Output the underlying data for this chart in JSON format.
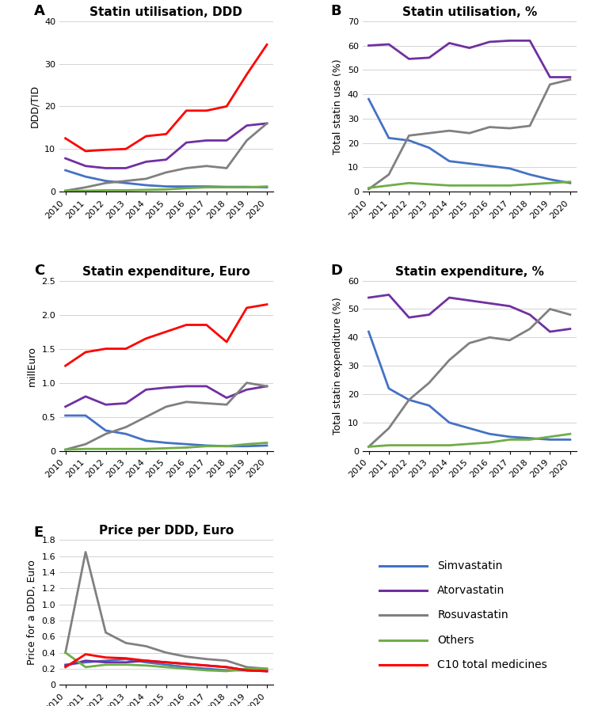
{
  "years": [
    2010,
    2011,
    2012,
    2013,
    2014,
    2015,
    2016,
    2017,
    2018,
    2019,
    2020
  ],
  "A": {
    "title": "Statin utilisation, DDD",
    "ylabel": "DDD/TID",
    "ylim": [
      0,
      40
    ],
    "yticks": [
      0,
      10,
      20,
      30,
      40
    ],
    "simvastatin": [
      5.0,
      3.5,
      2.5,
      2.0,
      1.5,
      1.2,
      1.2,
      1.2,
      1.1,
      1.1,
      1.0
    ],
    "atorvastatin": [
      7.8,
      6.0,
      5.5,
      5.5,
      7.0,
      7.5,
      11.5,
      12.0,
      12.0,
      15.5,
      16.0
    ],
    "rosuvastatin": [
      0.2,
      1.0,
      2.0,
      2.5,
      3.0,
      4.5,
      5.5,
      6.0,
      5.5,
      12.0,
      16.0
    ],
    "others": [
      0.2,
      0.2,
      0.3,
      0.3,
      0.4,
      0.5,
      0.8,
      1.0,
      1.0,
      1.0,
      1.2
    ],
    "c10total": [
      12.5,
      9.5,
      9.8,
      10.0,
      13.0,
      13.5,
      19.0,
      19.0,
      20.0,
      27.5,
      34.5
    ]
  },
  "B": {
    "title": "Statin utilisation, %",
    "ylabel": "Total statin use (%)",
    "ylim": [
      0,
      70
    ],
    "yticks": [
      0,
      10,
      20,
      30,
      40,
      50,
      60,
      70
    ],
    "simvastatin": [
      38.0,
      22.0,
      21.0,
      18.0,
      12.5,
      11.5,
      10.5,
      9.5,
      7.0,
      5.0,
      3.5
    ],
    "atorvastatin": [
      60.0,
      60.5,
      54.5,
      55.0,
      61.0,
      59.0,
      61.5,
      62.0,
      62.0,
      47.0,
      47.0
    ],
    "rosuvastatin": [
      1.0,
      7.0,
      23.0,
      24.0,
      25.0,
      24.0,
      26.5,
      26.0,
      27.0,
      44.0,
      46.0
    ],
    "others": [
      1.5,
      2.5,
      3.5,
      3.0,
      2.5,
      2.5,
      2.5,
      2.5,
      3.0,
      3.5,
      4.0
    ],
    "c10total": null
  },
  "C": {
    "title": "Statin expenditure, Euro",
    "ylabel": "millEuro",
    "ylim": [
      0,
      2.5
    ],
    "yticks": [
      0,
      0.5,
      1.0,
      1.5,
      2.0,
      2.5
    ],
    "simvastatin": [
      0.52,
      0.52,
      0.3,
      0.25,
      0.15,
      0.12,
      0.1,
      0.08,
      0.07,
      0.07,
      0.08
    ],
    "atorvastatin": [
      0.65,
      0.8,
      0.68,
      0.7,
      0.9,
      0.93,
      0.95,
      0.95,
      0.78,
      0.9,
      0.95
    ],
    "rosuvastatin": [
      0.02,
      0.1,
      0.25,
      0.35,
      0.5,
      0.65,
      0.72,
      0.7,
      0.68,
      1.0,
      0.95
    ],
    "others": [
      0.02,
      0.03,
      0.03,
      0.03,
      0.03,
      0.04,
      0.05,
      0.07,
      0.07,
      0.1,
      0.12
    ],
    "c10total": [
      1.25,
      1.45,
      1.5,
      1.5,
      1.65,
      1.75,
      1.85,
      1.85,
      1.6,
      2.1,
      2.15
    ]
  },
  "D": {
    "title": "Statin expenditure, %",
    "ylabel": "Total statin expenditure (%)",
    "ylim": [
      0,
      60
    ],
    "yticks": [
      0,
      10,
      20,
      30,
      40,
      50,
      60
    ],
    "simvastatin": [
      42.0,
      22.0,
      18.0,
      16.0,
      10.0,
      8.0,
      6.0,
      5.0,
      4.5,
      4.0,
      4.0
    ],
    "atorvastatin": [
      54.0,
      55.0,
      47.0,
      48.0,
      54.0,
      53.0,
      52.0,
      51.0,
      48.0,
      42.0,
      43.0
    ],
    "rosuvastatin": [
      1.5,
      8.0,
      18.0,
      24.0,
      32.0,
      38.0,
      40.0,
      39.0,
      43.0,
      50.0,
      48.0
    ],
    "others": [
      1.5,
      2.0,
      2.0,
      2.0,
      2.0,
      2.5,
      3.0,
      4.0,
      4.0,
      5.0,
      6.0
    ],
    "c10total": null
  },
  "E": {
    "title": "Price per DDD, Euro",
    "ylabel": "Price for a DDD, Euro",
    "ylim": [
      0,
      1.8
    ],
    "yticks": [
      0,
      0.2,
      0.4,
      0.6,
      0.8,
      1.0,
      1.2,
      1.4,
      1.6,
      1.8
    ],
    "simvastatin": [
      0.25,
      0.28,
      0.3,
      0.32,
      0.28,
      0.25,
      0.22,
      0.2,
      0.18,
      0.18,
      0.17
    ],
    "atorvastatin": [
      0.24,
      0.3,
      0.28,
      0.28,
      0.3,
      0.28,
      0.26,
      0.24,
      0.22,
      0.18,
      0.17
    ],
    "rosuvastatin": [
      0.4,
      1.65,
      0.65,
      0.52,
      0.48,
      0.4,
      0.35,
      0.32,
      0.3,
      0.22,
      0.2
    ],
    "others": [
      0.4,
      0.22,
      0.25,
      0.25,
      0.24,
      0.22,
      0.2,
      0.18,
      0.17,
      0.2,
      0.2
    ],
    "c10total": [
      0.22,
      0.38,
      0.34,
      0.33,
      0.3,
      0.28,
      0.26,
      0.24,
      0.22,
      0.18,
      0.17
    ]
  },
  "colors": {
    "simvastatin": "#4472C4",
    "atorvastatin": "#7030A0",
    "rosuvastatin": "#808080",
    "others": "#70AD47",
    "c10total": "#FF0000"
  },
  "legend_labels": {
    "simvastatin": "Simvastatin",
    "atorvastatin": "Atorvastatin",
    "rosuvastatin": "Rosuvastatin",
    "others": "Others",
    "c10total": "C10 total medicines"
  },
  "panel_labels": [
    "A",
    "B",
    "C",
    "D",
    "E"
  ],
  "label_fontsize": 13,
  "title_fontsize": 11,
  "tick_fontsize": 8,
  "ylabel_fontsize": 9,
  "lw": 2.0,
  "background_color": "#ffffff"
}
